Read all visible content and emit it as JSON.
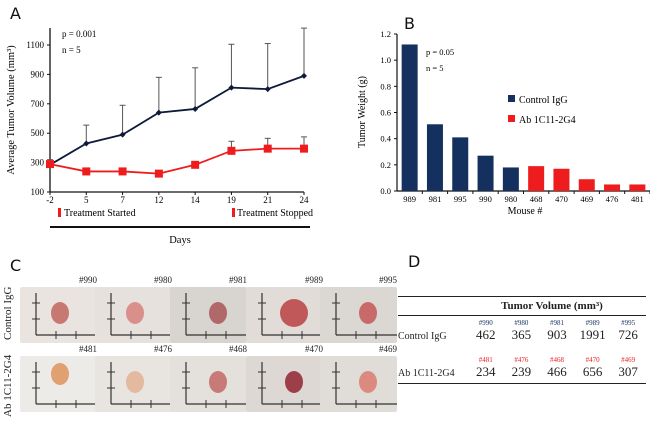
{
  "panel_labels": {
    "a": "A",
    "b": "B",
    "c": "C",
    "d": "D"
  },
  "chart_data": [
    {
      "type": "line",
      "panel": "A",
      "ylabel": "Average Tumor Volume (mm³)",
      "xlabel": "Days",
      "x": [
        -2,
        5,
        7,
        12,
        14,
        19,
        21,
        24
      ],
      "x_tick_labels": [
        "-2",
        "5",
        "7",
        "12",
        "14",
        "19",
        "21",
        "24"
      ],
      "ylim": [
        100,
        1200
      ],
      "y_ticks": [
        100,
        300,
        500,
        700,
        900,
        1100
      ],
      "annotations": [
        "p = 0.001",
        "n = 5"
      ],
      "markers": [
        {
          "label": "Treatment Started",
          "color": "#ee1c1c"
        },
        {
          "label": "Treatment Stopped",
          "color": "#ee1c1c"
        }
      ],
      "series": [
        {
          "name": "Control IgG",
          "color": "#0e1a3a",
          "marker": "diamond",
          "values": [
            285,
            430,
            490,
            640,
            665,
            810,
            800,
            890
          ],
          "error_top": [
            null,
            555,
            690,
            880,
            945,
            1105,
            1110,
            1215
          ]
        },
        {
          "name": "Ab 1C11-2G4",
          "color": "#ee1c1c",
          "marker": "square",
          "values": [
            290,
            240,
            240,
            225,
            285,
            380,
            395,
            395
          ],
          "error_top": [
            320,
            null,
            null,
            null,
            305,
            445,
            465,
            475
          ]
        }
      ]
    },
    {
      "type": "bar",
      "panel": "B",
      "ylabel": "Tumor Weight (g)",
      "xlabel": "Mouse #",
      "categories": [
        "989",
        "981",
        "995",
        "990",
        "980",
        "468",
        "470",
        "469",
        "476",
        "481"
      ],
      "values": [
        1.12,
        0.51,
        0.41,
        0.27,
        0.18,
        0.19,
        0.17,
        0.09,
        0.05,
        0.05
      ],
      "groups": [
        "Control IgG",
        "Control IgG",
        "Control IgG",
        "Control IgG",
        "Control IgG",
        "Ab 1C11-2G4",
        "Ab 1C11-2G4",
        "Ab 1C11-2G4",
        "Ab 1C11-2G4",
        "Ab 1C11-2G4"
      ],
      "ylim": [
        0,
        1.2
      ],
      "y_ticks": [
        "0.0",
        "0.2",
        "0.4",
        "0.6",
        "0.8",
        "1.0",
        "1.2"
      ],
      "annotations": [
        "p = 0.05",
        "n = 5"
      ],
      "legend": [
        {
          "label": "Control IgG",
          "color": "#14305e"
        },
        {
          "label": "Ab 1C11-2G4",
          "color": "#ee1c1c"
        }
      ],
      "legend_position": "right"
    },
    {
      "type": "table",
      "panel": "D",
      "title": "Tumor Volume (mm³)",
      "rows": [
        {
          "label": "Control IgG",
          "ids": [
            "#990",
            "#980",
            "#981",
            "#989",
            "#995"
          ],
          "values": [
            "462",
            "365",
            "903",
            "1991",
            "726"
          ],
          "id_color": "#14305e"
        },
        {
          "label": "Ab 1C11-2G4",
          "ids": [
            "#481",
            "#476",
            "#468",
            "#470",
            "#469"
          ],
          "values": [
            "234",
            "239",
            "466",
            "656",
            "307"
          ],
          "id_color": "#ee1c1c"
        }
      ]
    }
  ],
  "photos": {
    "row_labels": [
      "Control IgG",
      "Ab 1C11-2G4"
    ],
    "rows": [
      [
        "#990",
        "#980",
        "#981",
        "#989",
        "#995"
      ],
      [
        "#481",
        "#476",
        "#468",
        "#470",
        "#469"
      ]
    ]
  }
}
